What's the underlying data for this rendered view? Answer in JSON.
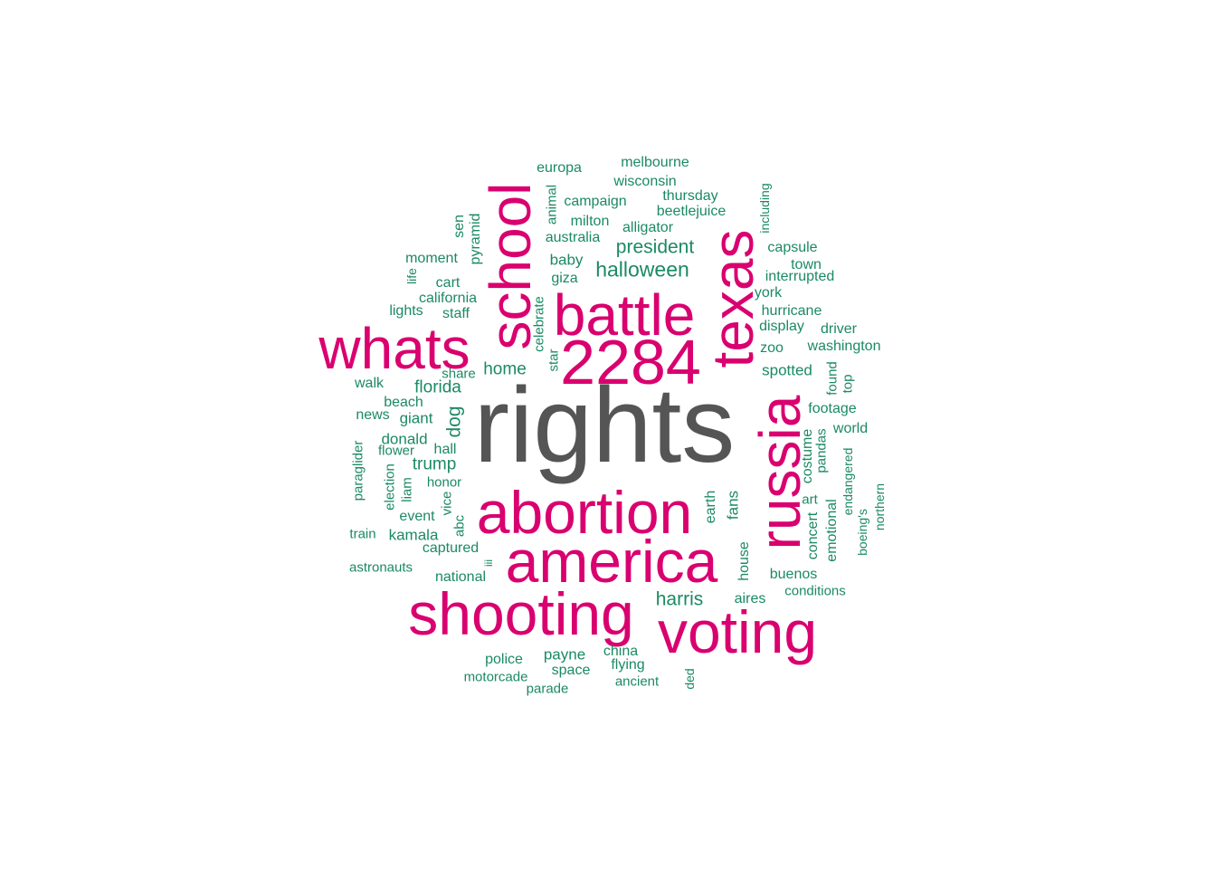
{
  "colors": {
    "top": "#555555",
    "high": "#d9006f",
    "low": "#1b8a62"
  },
  "words": [
    "rights",
    "2284",
    "battle",
    "whats",
    "school",
    "texas",
    "russia",
    "abortion",
    "america",
    "shooting",
    "voting",
    "halloween",
    "president",
    "harris",
    "florida",
    "dog",
    "home",
    "melbourne",
    "europa",
    "wisconsin",
    "thursday",
    "campaign",
    "beetlejuice",
    "milton",
    "alligator",
    "australia",
    "baby",
    "giza",
    "moment",
    "cart",
    "california",
    "staff",
    "lights",
    "sen",
    "pyramid",
    "life",
    "animal",
    "including",
    "capsule",
    "town",
    "interrupted",
    "york",
    "hurricane",
    "display",
    "driver",
    "washington",
    "zoo",
    "spotted",
    "found",
    "top",
    "footage",
    "world",
    "pandas",
    "costume",
    "endangered",
    "art",
    "emotional",
    "concert",
    "boeing's",
    "northern",
    "beach",
    "news",
    "giant",
    "walk",
    "share",
    "celebrate",
    "star",
    "donald",
    "flower",
    "hall",
    "trump",
    "honor",
    "paraglider",
    "election",
    "liam",
    "vice",
    "event",
    "abc",
    "train",
    "kamala",
    "captured",
    "astronauts",
    "iii",
    "national",
    "earth",
    "fans",
    "house",
    "buenos",
    "conditions",
    "aires",
    "payne",
    "china",
    "police",
    "space",
    "flying",
    "motorcade",
    "ancient",
    "parade",
    "ded"
  ]
}
